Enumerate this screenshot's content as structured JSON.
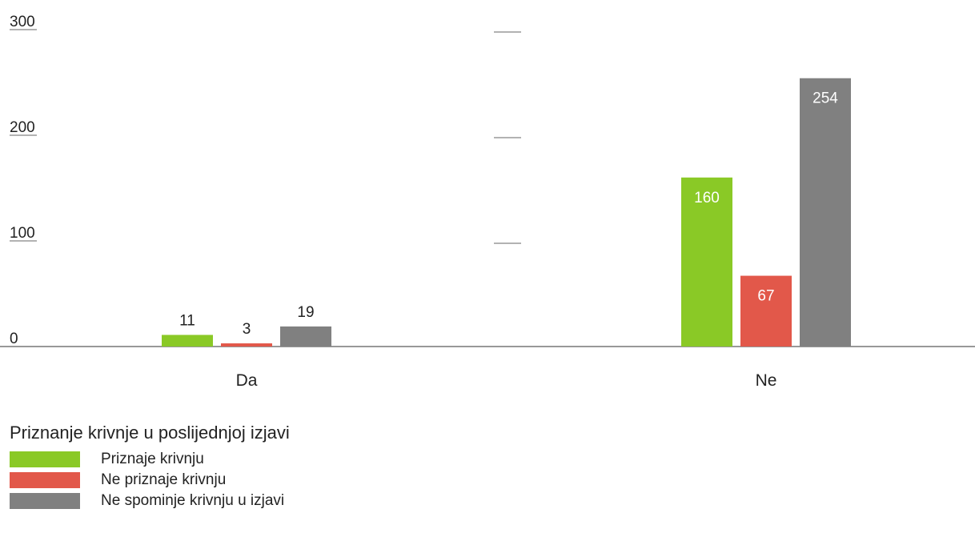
{
  "chart_data": {
    "type": "bar",
    "categories": [
      "Da",
      "Ne"
    ],
    "series": [
      {
        "name": "Priznaje krivnju",
        "values": [
          11,
          160
        ],
        "color": "#8ac926"
      },
      {
        "name": "Ne priznaje krivnju",
        "values": [
          3,
          67
        ],
        "color": "#e2584a"
      },
      {
        "name": "Ne spominje krivnju u izjavi",
        "values": [
          19,
          254
        ],
        "color": "#808080"
      }
    ],
    "yticks": [
      "0",
      "100",
      "200",
      "300"
    ],
    "ylim": [
      0,
      300
    ],
    "legend_title": "Priznanje krivnje u poslijednjoj izjavi",
    "legend_position": "bottom-left",
    "grid": false
  }
}
